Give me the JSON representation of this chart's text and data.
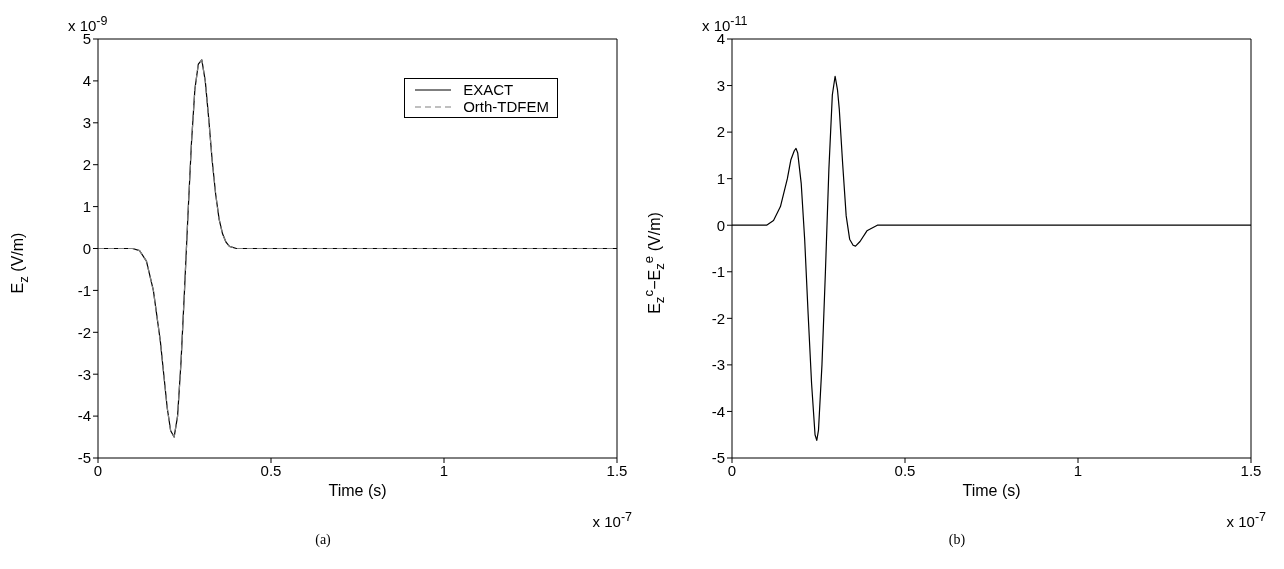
{
  "chart_data": [
    {
      "type": "line",
      "xlabel": "Time (s)",
      "ylabel": "E$_{z}$ (V/m)",
      "xlim": [
        0,
        1.5
      ],
      "xticks": [
        0,
        0.5,
        1,
        1.5
      ],
      "ylim": [
        -5,
        5
      ],
      "yticks": [
        -5,
        -4,
        -3,
        -2,
        -1,
        0,
        1,
        2,
        3,
        4,
        5
      ],
      "legend": "top right",
      "annotations": [
        "x 10$^{-9}$",
        "x 10$^{-7}$",
        "(a)"
      ],
      "x": [
        0,
        0.1,
        0.12,
        0.14,
        0.16,
        0.18,
        0.19,
        0.2,
        0.21,
        0.22,
        0.23,
        0.24,
        0.25,
        0.26,
        0.27,
        0.28,
        0.29,
        0.3,
        0.31,
        0.32,
        0.33,
        0.34,
        0.35,
        0.36,
        0.37,
        0.38,
        0.4,
        0.45,
        1.5
      ],
      "series": [
        {
          "name": "EXACT",
          "color": "#000000",
          "line_style": "solid",
          "values": [
            0,
            0,
            -0.05,
            -0.3,
            -1.0,
            -2.2,
            -3.0,
            -3.8,
            -4.35,
            -4.5,
            -4.0,
            -2.7,
            -1.0,
            0.8,
            2.5,
            3.8,
            4.4,
            4.5,
            4.0,
            3.1,
            2.1,
            1.3,
            0.7,
            0.35,
            0.15,
            0.05,
            0,
            0,
            0
          ]
        },
        {
          "name": "Orth-TDFEM",
          "color": "#808080",
          "line_style": "dashed",
          "values": [
            0,
            0,
            -0.05,
            -0.3,
            -1.0,
            -2.2,
            -3.0,
            -3.8,
            -4.35,
            -4.5,
            -4.0,
            -2.7,
            -1.0,
            0.8,
            2.5,
            3.8,
            4.4,
            4.5,
            4.0,
            3.1,
            2.1,
            1.3,
            0.7,
            0.35,
            0.15,
            0.05,
            0,
            0,
            0
          ]
        }
      ]
    },
    {
      "type": "line",
      "xlabel": "Time (s)",
      "ylabel": "E$_{z}$$^{c}$−E$_{z}$$^{e}$ (V/m)",
      "xlim": [
        0,
        1.5
      ],
      "xticks": [
        0,
        0.5,
        1,
        1.5
      ],
      "ylim": [
        -5,
        4
      ],
      "yticks": [
        -5,
        -4,
        -3,
        -2,
        -1,
        0,
        1,
        2,
        3,
        4
      ],
      "annotations": [
        "x 10$^{-11}$",
        "x 10$^{-7}$",
        "(b)"
      ],
      "x": [
        0,
        0.1,
        0.12,
        0.14,
        0.16,
        0.17,
        0.18,
        0.185,
        0.19,
        0.2,
        0.21,
        0.22,
        0.23,
        0.24,
        0.245,
        0.25,
        0.26,
        0.27,
        0.28,
        0.29,
        0.298,
        0.305,
        0.31,
        0.32,
        0.33,
        0.34,
        0.35,
        0.357,
        0.37,
        0.39,
        0.42,
        0.5,
        1.5
      ],
      "series": [
        {
          "color": "#000000",
          "line_style": "solid",
          "values": [
            0,
            0,
            0.1,
            0.4,
            1.0,
            1.4,
            1.6,
            1.65,
            1.55,
            0.9,
            -0.3,
            -1.9,
            -3.4,
            -4.5,
            -4.62,
            -4.4,
            -3.0,
            -1.0,
            1.2,
            2.8,
            3.2,
            2.9,
            2.5,
            1.3,
            0.2,
            -0.3,
            -0.43,
            -0.45,
            -0.35,
            -0.12,
            0,
            0,
            0
          ]
        }
      ]
    }
  ]
}
